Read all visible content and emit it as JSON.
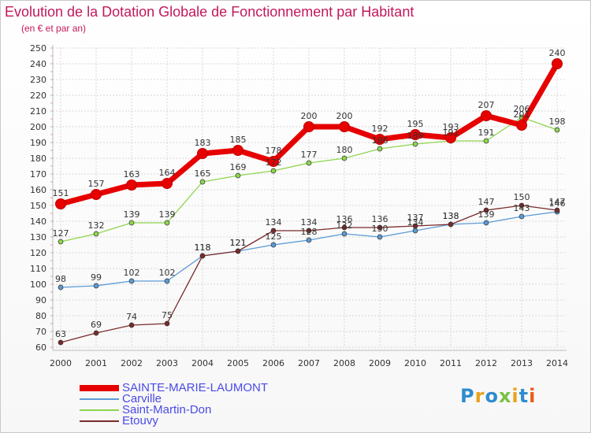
{
  "title": "Evolution de la Dotation Globale de Fonctionnement par Habitant",
  "subtitle": "(en € et par an)",
  "logo": "Proxiti",
  "chart_data": {
    "type": "line",
    "title": "Evolution de la Dotation Globale de Fonctionnement par Habitant",
    "subtitle": "(en € et par an)",
    "xlabel": "",
    "ylabel": "",
    "ylim": [
      60,
      250
    ],
    "ytick_step": 10,
    "grid": true,
    "legend_position": "bottom-left",
    "x": [
      "2000",
      "2001",
      "2002",
      "2003",
      "2004",
      "2005",
      "2006",
      "2007",
      "2008",
      "2009",
      "2010",
      "2011",
      "2012",
      "2013",
      "2014"
    ],
    "series": [
      {
        "name": "SAINTE-MARIE-LAUMONT",
        "color": "#e60000",
        "emphasis": true,
        "values": [
          151,
          157,
          163,
          164,
          183,
          185,
          178,
          200,
          200,
          192,
          195,
          193,
          207,
          201,
          240
        ],
        "labels": [
          "151",
          "157",
          "163",
          "164",
          "183",
          "185",
          "178",
          "200",
          "200",
          "192",
          "195",
          "193",
          "207",
          "201",
          "240"
        ]
      },
      {
        "name": "Carville",
        "color": "#5a9bd5",
        "values": [
          98,
          99,
          102,
          102,
          118,
          121,
          125,
          128,
          132,
          130,
          134,
          138,
          139,
          143,
          146
        ],
        "labels": [
          "98",
          "99",
          "102",
          "102",
          "118",
          "121",
          "125",
          "128",
          "132",
          "130",
          "134",
          "138",
          "139",
          "143",
          "146"
        ]
      },
      {
        "name": "Saint-Martin-Don",
        "color": "#8ed64e",
        "values": [
          127,
          132,
          139,
          139,
          165,
          169,
          172,
          177,
          180,
          186,
          189,
          191,
          191,
          206,
          198
        ],
        "labels": [
          "127",
          "132",
          "139",
          "139",
          "165",
          "169",
          "172",
          "177",
          "180",
          "186",
          "189",
          "191",
          "191",
          "206",
          "198"
        ]
      },
      {
        "name": "Etouvy",
        "color": "#7a2a2a",
        "values": [
          63,
          69,
          74,
          75,
          118,
          121,
          134,
          134,
          136,
          136,
          137,
          138,
          147,
          150,
          147
        ],
        "labels": [
          "63",
          "69",
          "74",
          "75",
          "118",
          "121",
          "134",
          "134",
          "136",
          "136",
          "137",
          "138",
          "147",
          "150",
          "147"
        ]
      }
    ]
  }
}
